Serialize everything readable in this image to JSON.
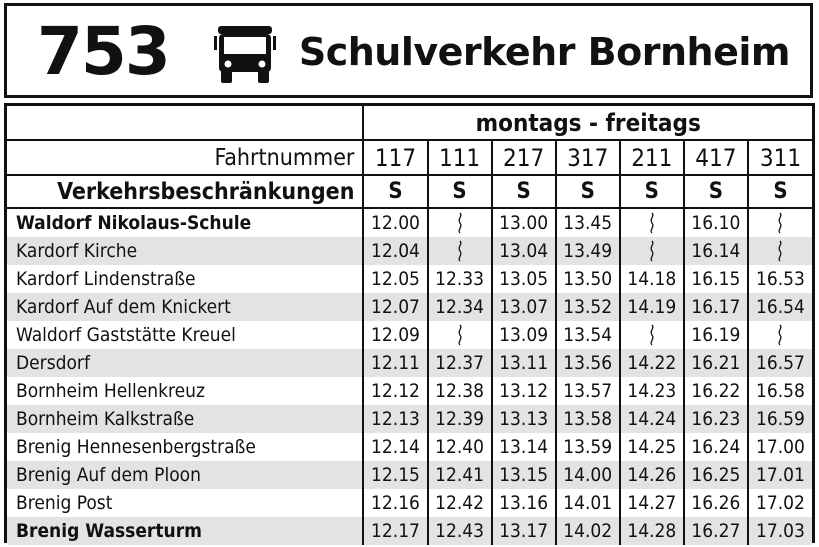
{
  "header": {
    "route_number": "753",
    "title": "Schulverkehr Bornheim",
    "icon": "bus-icon"
  },
  "table": {
    "day_label": "montags - freitags",
    "trip_number_label": "Fahrtnummer",
    "restriction_label": "Verkehrsbeschränkungen",
    "trips": [
      "117",
      "111",
      "217",
      "317",
      "211",
      "417",
      "311"
    ],
    "restrictions": [
      "S",
      "S",
      "S",
      "S",
      "S",
      "S",
      "S"
    ],
    "pass_symbol": "passes-without-stop-icon",
    "stops": [
      {
        "name": "Waldorf Nikolaus-Schule",
        "bold": true,
        "times": [
          "12.00",
          null,
          "13.00",
          "13.45",
          null,
          "16.10",
          null
        ]
      },
      {
        "name": "Kardorf Kirche",
        "bold": false,
        "times": [
          "12.04",
          null,
          "13.04",
          "13.49",
          null,
          "16.14",
          null
        ]
      },
      {
        "name": "Kardorf Lindenstraße",
        "bold": false,
        "times": [
          "12.05",
          "12.33",
          "13.05",
          "13.50",
          "14.18",
          "16.15",
          "16.53"
        ]
      },
      {
        "name": "Kardorf Auf dem Knickert",
        "bold": false,
        "times": [
          "12.07",
          "12.34",
          "13.07",
          "13.52",
          "14.19",
          "16.17",
          "16.54"
        ]
      },
      {
        "name": "Waldorf Gaststätte Kreuel",
        "bold": false,
        "times": [
          "12.09",
          null,
          "13.09",
          "13.54",
          null,
          "16.19",
          null
        ]
      },
      {
        "name": "Dersdorf",
        "bold": false,
        "times": [
          "12.11",
          "12.37",
          "13.11",
          "13.56",
          "14.22",
          "16.21",
          "16.57"
        ]
      },
      {
        "name": "Bornheim Hellenkreuz",
        "bold": false,
        "times": [
          "12.12",
          "12.38",
          "13.12",
          "13.57",
          "14.23",
          "16.22",
          "16.58"
        ]
      },
      {
        "name": "Bornheim Kalkstraße",
        "bold": false,
        "times": [
          "12.13",
          "12.39",
          "13.13",
          "13.58",
          "14.24",
          "16.23",
          "16.59"
        ]
      },
      {
        "name": "Brenig Hennesenbergstraße",
        "bold": false,
        "times": [
          "12.14",
          "12.40",
          "13.14",
          "13.59",
          "14.25",
          "16.24",
          "17.00"
        ]
      },
      {
        "name": "Brenig Auf dem Ploon",
        "bold": false,
        "times": [
          "12.15",
          "12.41",
          "13.15",
          "14.00",
          "14.26",
          "16.25",
          "17.01"
        ]
      },
      {
        "name": "Brenig Post",
        "bold": false,
        "times": [
          "12.16",
          "12.42",
          "13.16",
          "14.01",
          "14.27",
          "16.26",
          "17.02"
        ]
      },
      {
        "name": "Brenig Wasserturm",
        "bold": true,
        "times": [
          "12.17",
          "12.43",
          "13.17",
          "14.02",
          "14.28",
          "16.27",
          "17.03"
        ]
      }
    ]
  },
  "colors": {
    "border": "#111111",
    "row_shade": "#e3e3e3",
    "background": "#ffffff"
  }
}
